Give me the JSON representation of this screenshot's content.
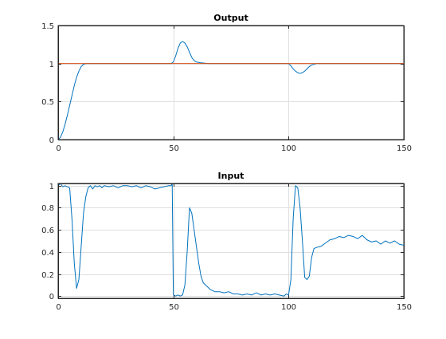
{
  "chart_data": [
    {
      "type": "line",
      "title": "Output",
      "xlabel": "",
      "ylabel": "",
      "xlim": [
        0,
        150
      ],
      "ylim": [
        0,
        1.5
      ],
      "xticks": [
        0,
        50,
        100,
        150
      ],
      "yticks": [
        0,
        0.5,
        1,
        1.5
      ],
      "xtick_labels": [
        "0",
        "50",
        "100",
        "150"
      ],
      "ytick_labels": [
        "0",
        "0.5",
        "1",
        "1.5"
      ],
      "grid": true,
      "series": [
        {
          "color": "#0072bd",
          "x": [
            0,
            1,
            2,
            3,
            4,
            5,
            6,
            7,
            8,
            9,
            10,
            11,
            12,
            13,
            14,
            16,
            20,
            30,
            40,
            44,
            47,
            49,
            50,
            51,
            52,
            53,
            54,
            55,
            56,
            57,
            58,
            59,
            60,
            62,
            65,
            70,
            75,
            80,
            85,
            90,
            95,
            100,
            101,
            102,
            103,
            104,
            105,
            106,
            107,
            108,
            109,
            110,
            112,
            115,
            120,
            125,
            130,
            135,
            140,
            145,
            150
          ],
          "y": [
            0,
            0.03,
            0.1,
            0.2,
            0.32,
            0.45,
            0.58,
            0.71,
            0.82,
            0.9,
            0.96,
            0.99,
            1,
            1,
            1,
            1,
            1,
            1,
            1,
            1,
            1,
            1,
            1.02,
            1.1,
            1.2,
            1.27,
            1.29,
            1.27,
            1.22,
            1.15,
            1.08,
            1.04,
            1.02,
            1.01,
            1,
            1,
            1,
            1,
            1,
            1,
            1,
            1,
            0.97,
            0.93,
            0.9,
            0.88,
            0.87,
            0.88,
            0.9,
            0.93,
            0.96,
            0.98,
            1,
            1,
            1,
            1,
            1,
            1,
            1,
            1,
            1
          ]
        },
        {
          "color": "#d95319",
          "x": [
            0,
            150
          ],
          "y": [
            1,
            1
          ]
        }
      ]
    },
    {
      "type": "line",
      "title": "Input",
      "xlabel": "",
      "ylabel": "",
      "xlim": [
        0,
        150
      ],
      "ylim": [
        -0.02,
        1.02
      ],
      "xticks": [
        0,
        50,
        100,
        150
      ],
      "yticks": [
        0,
        0.2,
        0.4,
        0.6,
        0.8,
        1
      ],
      "xtick_labels": [
        "0",
        "50",
        "100",
        "150"
      ],
      "ytick_labels": [
        "0",
        "0.2",
        "0.4",
        "0.6",
        "0.8",
        "1"
      ],
      "grid": true,
      "series": [
        {
          "color": "#0072bd",
          "x": [
            0,
            1,
            2,
            3,
            4,
            5,
            6,
            7,
            8,
            9,
            10,
            11,
            12,
            13,
            14,
            15,
            16,
            17,
            18,
            19,
            20,
            22,
            24,
            26,
            28,
            30,
            32,
            34,
            36,
            38,
            40,
            42,
            44,
            46,
            48,
            49,
            49.5,
            50,
            51,
            52,
            53,
            54,
            55,
            56,
            57,
            58,
            59,
            60,
            61,
            62,
            63,
            64,
            65,
            66,
            68,
            70,
            72,
            74,
            76,
            78,
            80,
            82,
            84,
            86,
            88,
            90,
            92,
            94,
            96,
            98,
            99,
            100,
            101,
            102,
            103,
            104,
            105,
            106,
            107,
            108,
            109,
            110,
            111,
            112,
            114,
            116,
            118,
            120,
            122,
            124,
            126,
            128,
            130,
            132,
            134,
            136,
            138,
            140,
            142,
            144,
            146,
            148,
            150
          ],
          "y": [
            1,
            1.02,
            0.99,
            1,
            0.99,
            0.98,
            0.7,
            0.3,
            0.07,
            0.15,
            0.45,
            0.75,
            0.9,
            0.98,
            1,
            0.97,
            1,
            0.99,
            1,
            0.98,
            1,
            0.99,
            1,
            0.98,
            1,
            1,
            0.99,
            1,
            0.98,
            1,
            0.99,
            0.97,
            0.98,
            0.99,
            1,
            1,
            1.02,
            0.01,
            0,
            0.01,
            0,
            0.01,
            0.1,
            0.4,
            0.8,
            0.75,
            0.6,
            0.45,
            0.3,
            0.18,
            0.12,
            0.1,
            0.08,
            0.06,
            0.04,
            0.04,
            0.03,
            0.04,
            0.02,
            0.02,
            0.01,
            0.02,
            0.01,
            0.03,
            0.01,
            0.02,
            0.01,
            0.02,
            0.01,
            0,
            0.02,
            0.01,
            0.15,
            0.7,
            1,
            0.98,
            0.8,
            0.5,
            0.17,
            0.15,
            0.18,
            0.35,
            0.43,
            0.44,
            0.45,
            0.48,
            0.51,
            0.52,
            0.54,
            0.53,
            0.55,
            0.54,
            0.52,
            0.55,
            0.51,
            0.49,
            0.5,
            0.47,
            0.5,
            0.48,
            0.5,
            0.47,
            0.46
          ]
        }
      ]
    }
  ]
}
